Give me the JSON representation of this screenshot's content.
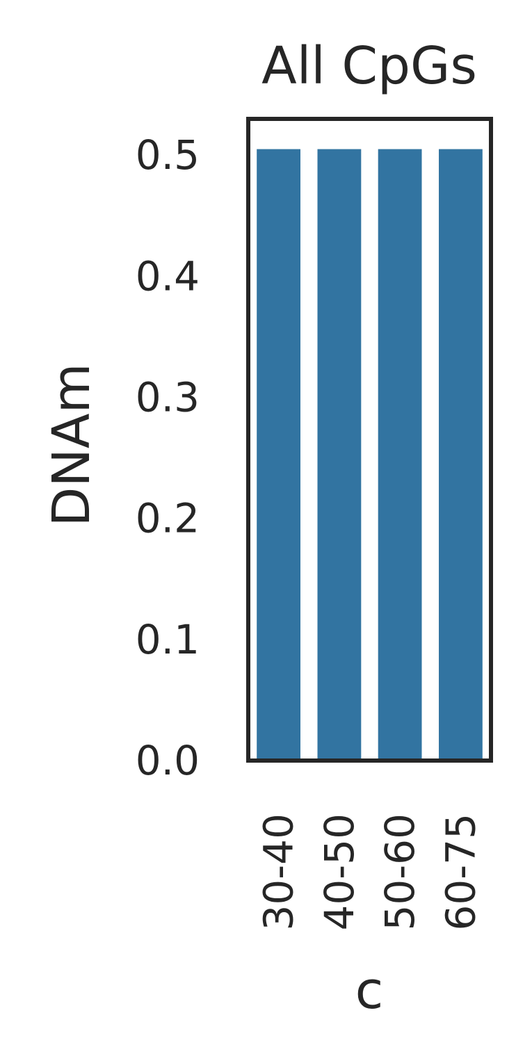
{
  "chart_data": {
    "type": "bar",
    "title": "All CpGs",
    "xlabel": "c",
    "ylabel": "DNAm",
    "categories": [
      "30-40",
      "40-50",
      "50-60",
      "60-75"
    ],
    "values": [
      0.505,
      0.505,
      0.505,
      0.505
    ],
    "ylim": [
      0,
      0.53
    ],
    "yticks": [
      "0.0",
      "0.1",
      "0.2",
      "0.3",
      "0.4",
      "0.5"
    ],
    "grid": false,
    "legend": "none",
    "colors": {
      "bar": "#3274a1",
      "axis": "#262626",
      "text": "#262626"
    }
  }
}
